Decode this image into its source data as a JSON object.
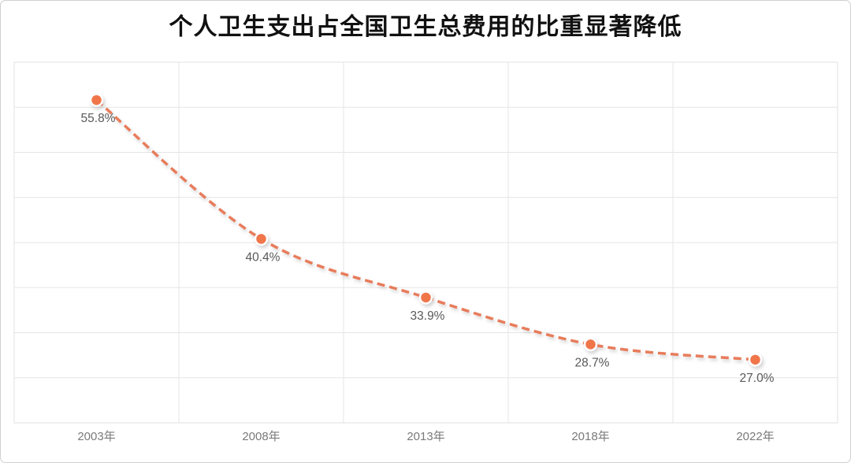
{
  "title": "个人卫生支出占全国卫生总费用的比重显著降低",
  "chart_data": {
    "type": "line",
    "title": "个人卫生支出占全国卫生总费用的比重显著降低",
    "categories": [
      "2003年",
      "2008年",
      "2013年",
      "2018年",
      "2022年"
    ],
    "values": [
      55.8,
      40.4,
      33.9,
      28.7,
      27.0
    ],
    "point_labels": [
      "55.8%",
      "40.4%",
      "33.9%",
      "28.7%",
      "27.0%"
    ],
    "xlabel": "",
    "ylabel": "",
    "ylim": [
      20,
      60
    ],
    "grid_step": 5,
    "grid": true,
    "legend": "none",
    "line_style": "dashed",
    "smooth": true,
    "colors": {
      "line": "#E87C5B",
      "marker_fill": "#F0764A",
      "marker_ring": "#FFFFFF",
      "gridline": "#E5E5E5",
      "plot_border": "#E0E0E0",
      "data_label": "#595959",
      "axis_label": "#7A7A7A",
      "title": "#111111"
    }
  }
}
